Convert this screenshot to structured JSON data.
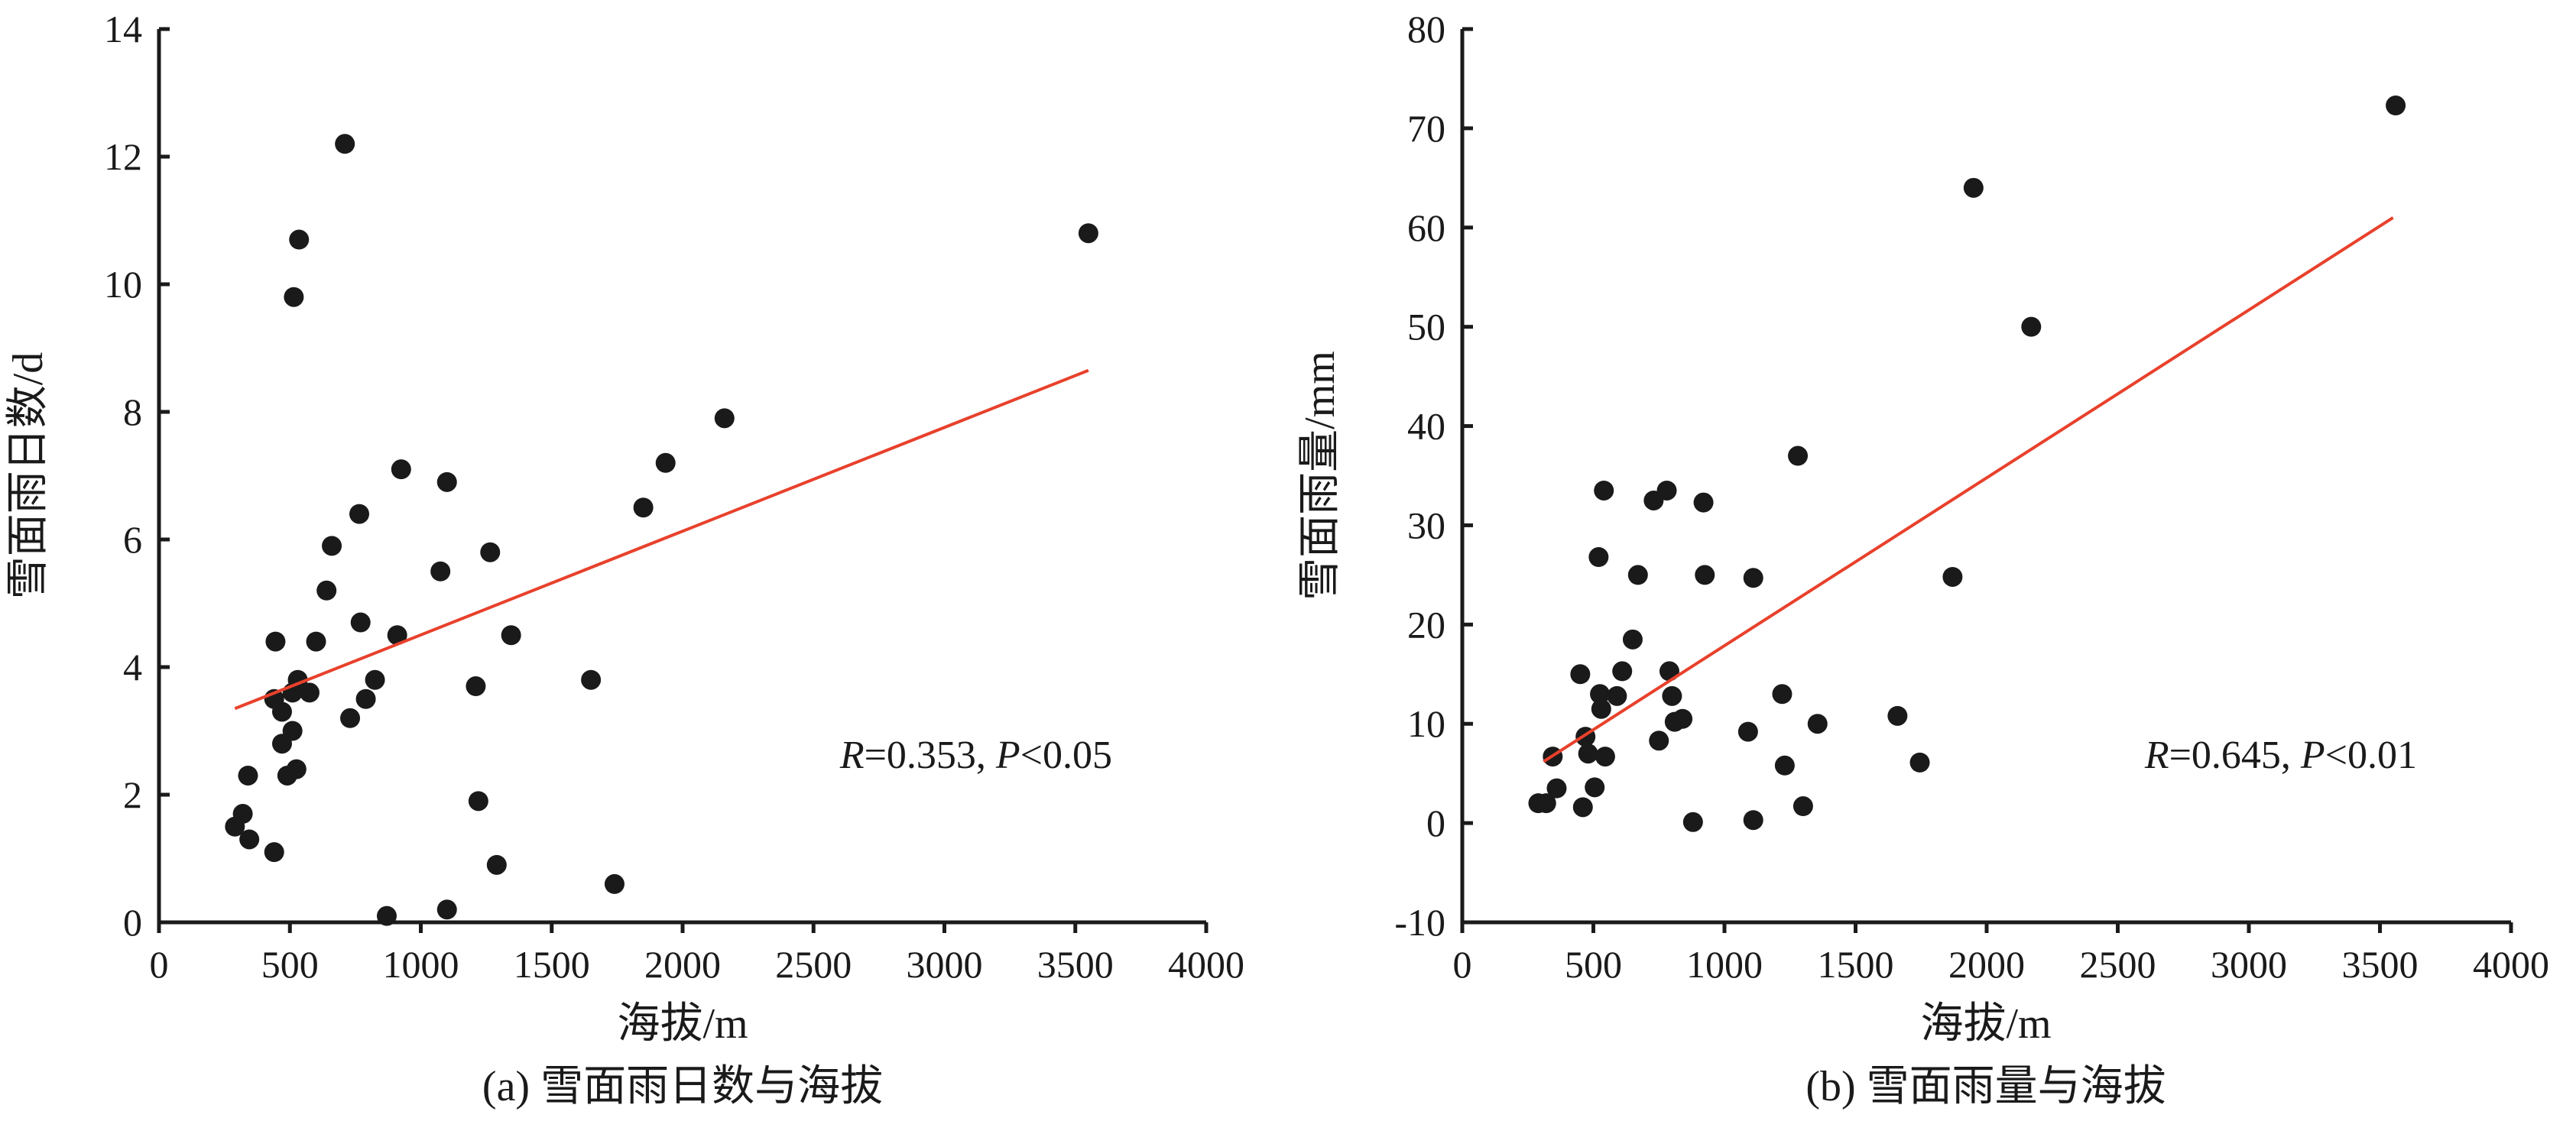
{
  "colors": {
    "points": "#1a1a1a",
    "fit_line": "#e8412c",
    "axes": "#1a1a1a"
  },
  "chart_data": [
    {
      "type": "scatter",
      "caption": "(a) 雪面雨日数与海拔",
      "xlabel": "海拔/m",
      "ylabel": "雪面雨日数/d",
      "xlim": [
        0,
        4000
      ],
      "ylim": [
        0,
        14
      ],
      "xticks": [
        0,
        500,
        1000,
        1500,
        2000,
        2500,
        3000,
        3500,
        4000
      ],
      "yticks": [
        0,
        2,
        4,
        6,
        8,
        10,
        12,
        14
      ],
      "grid": false,
      "annotation": {
        "r_symbol": "R",
        "r_value": "=0.353, ",
        "p_symbol": "P",
        "p_value": "<0.05"
      },
      "fit_line": {
        "x": [
          290,
          3550
        ],
        "y": [
          3.35,
          8.65
        ]
      },
      "points": [
        [
          290,
          1.5
        ],
        [
          320,
          1.7
        ],
        [
          340,
          2.3
        ],
        [
          345,
          1.3
        ],
        [
          440,
          1.1
        ],
        [
          440,
          3.5
        ],
        [
          445,
          4.4
        ],
        [
          470,
          2.8
        ],
        [
          470,
          3.3
        ],
        [
          490,
          2.3
        ],
        [
          510,
          3.6
        ],
        [
          510,
          3.0
        ],
        [
          515,
          9.8
        ],
        [
          525,
          2.4
        ],
        [
          530,
          3.8
        ],
        [
          535,
          10.7
        ],
        [
          575,
          3.6
        ],
        [
          600,
          4.4
        ],
        [
          640,
          5.2
        ],
        [
          660,
          5.9
        ],
        [
          710,
          12.2
        ],
        [
          730,
          3.2
        ],
        [
          765,
          6.4
        ],
        [
          770,
          4.7
        ],
        [
          790,
          3.5
        ],
        [
          825,
          3.8
        ],
        [
          870,
          0.1
        ],
        [
          910,
          4.5
        ],
        [
          925,
          7.1
        ],
        [
          1075,
          5.5
        ],
        [
          1100,
          6.9
        ],
        [
          1100,
          0.2
        ],
        [
          1210,
          3.7
        ],
        [
          1220,
          1.9
        ],
        [
          1265,
          5.8
        ],
        [
          1290,
          0.9
        ],
        [
          1345,
          4.5
        ],
        [
          1650,
          3.8
        ],
        [
          1740,
          0.6
        ],
        [
          1850,
          6.5
        ],
        [
          1935,
          7.2
        ],
        [
          2160,
          7.9
        ],
        [
          3550,
          10.8
        ]
      ]
    },
    {
      "type": "scatter",
      "caption": "(b) 雪面雨量与海拔",
      "xlabel": "海拔/m",
      "ylabel": "雪面雨量/mm",
      "xlim": [
        0,
        4000
      ],
      "ylim": [
        -10,
        80
      ],
      "xticks": [
        0,
        500,
        1000,
        1500,
        2000,
        2500,
        3000,
        3500,
        4000
      ],
      "yticks": [
        -10,
        0,
        10,
        20,
        30,
        40,
        50,
        60,
        70,
        80
      ],
      "grid": false,
      "annotation": {
        "r_symbol": "R",
        "r_value": "=0.645, ",
        "p_symbol": "P",
        "p_value": "<0.01"
      },
      "fit_line": {
        "x": [
          310,
          3550
        ],
        "y": [
          6.2,
          61.0
        ]
      },
      "points": [
        [
          290,
          2
        ],
        [
          320,
          2
        ],
        [
          345,
          6.7
        ],
        [
          360,
          3.5
        ],
        [
          450,
          15
        ],
        [
          460,
          1.6
        ],
        [
          470,
          8.7
        ],
        [
          480,
          7
        ],
        [
          505,
          3.6
        ],
        [
          520,
          26.8
        ],
        [
          525,
          13
        ],
        [
          530,
          11.5
        ],
        [
          540,
          33.5
        ],
        [
          545,
          6.7
        ],
        [
          590,
          12.8
        ],
        [
          610,
          15.3
        ],
        [
          650,
          18.5
        ],
        [
          670,
          25
        ],
        [
          730,
          32.5
        ],
        [
          750,
          8.3
        ],
        [
          780,
          33.5
        ],
        [
          790,
          15.3
        ],
        [
          800,
          12.8
        ],
        [
          810,
          10.2
        ],
        [
          840,
          10.5
        ],
        [
          880,
          0.1
        ],
        [
          920,
          32.3
        ],
        [
          925,
          25
        ],
        [
          1090,
          9.2
        ],
        [
          1110,
          24.7
        ],
        [
          1110,
          0.3
        ],
        [
          1220,
          13
        ],
        [
          1230,
          5.8
        ],
        [
          1280,
          37
        ],
        [
          1300,
          1.7
        ],
        [
          1355,
          10
        ],
        [
          1660,
          10.8
        ],
        [
          1745,
          6.1
        ],
        [
          1870,
          24.8
        ],
        [
          1950,
          64
        ],
        [
          2170,
          50
        ],
        [
          3560,
          72.3
        ]
      ]
    }
  ]
}
